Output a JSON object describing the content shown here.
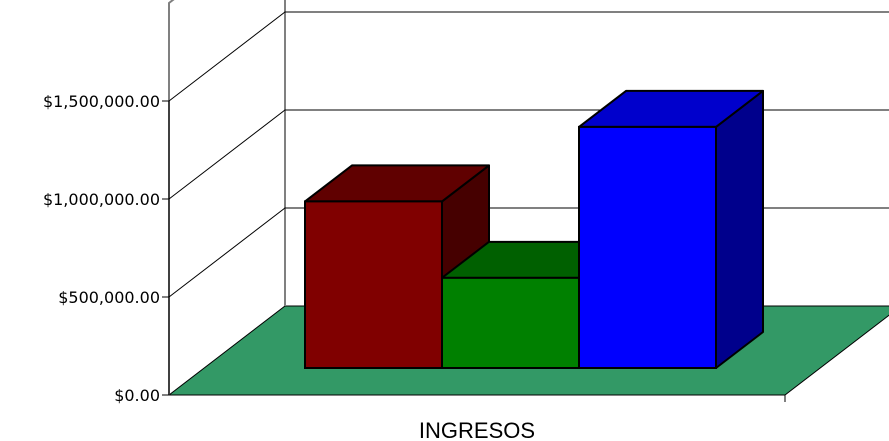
{
  "chart_data": {
    "type": "bar",
    "categories": [
      "INGRESOS"
    ],
    "series": [
      {
        "values": [
          850000
        ],
        "color": "#800000"
      },
      {
        "values": [
          460000
        ],
        "color": "#008000"
      },
      {
        "values": [
          1230000
        ],
        "color": "#0000ff"
      }
    ],
    "y_ticks": [
      "$0.00",
      "$500,000.00",
      "$1,000,000.00",
      "$1,500,000.00"
    ],
    "ylim": [
      0,
      2000000
    ],
    "grid": true,
    "floor_color": "#339966",
    "legend": "none"
  }
}
